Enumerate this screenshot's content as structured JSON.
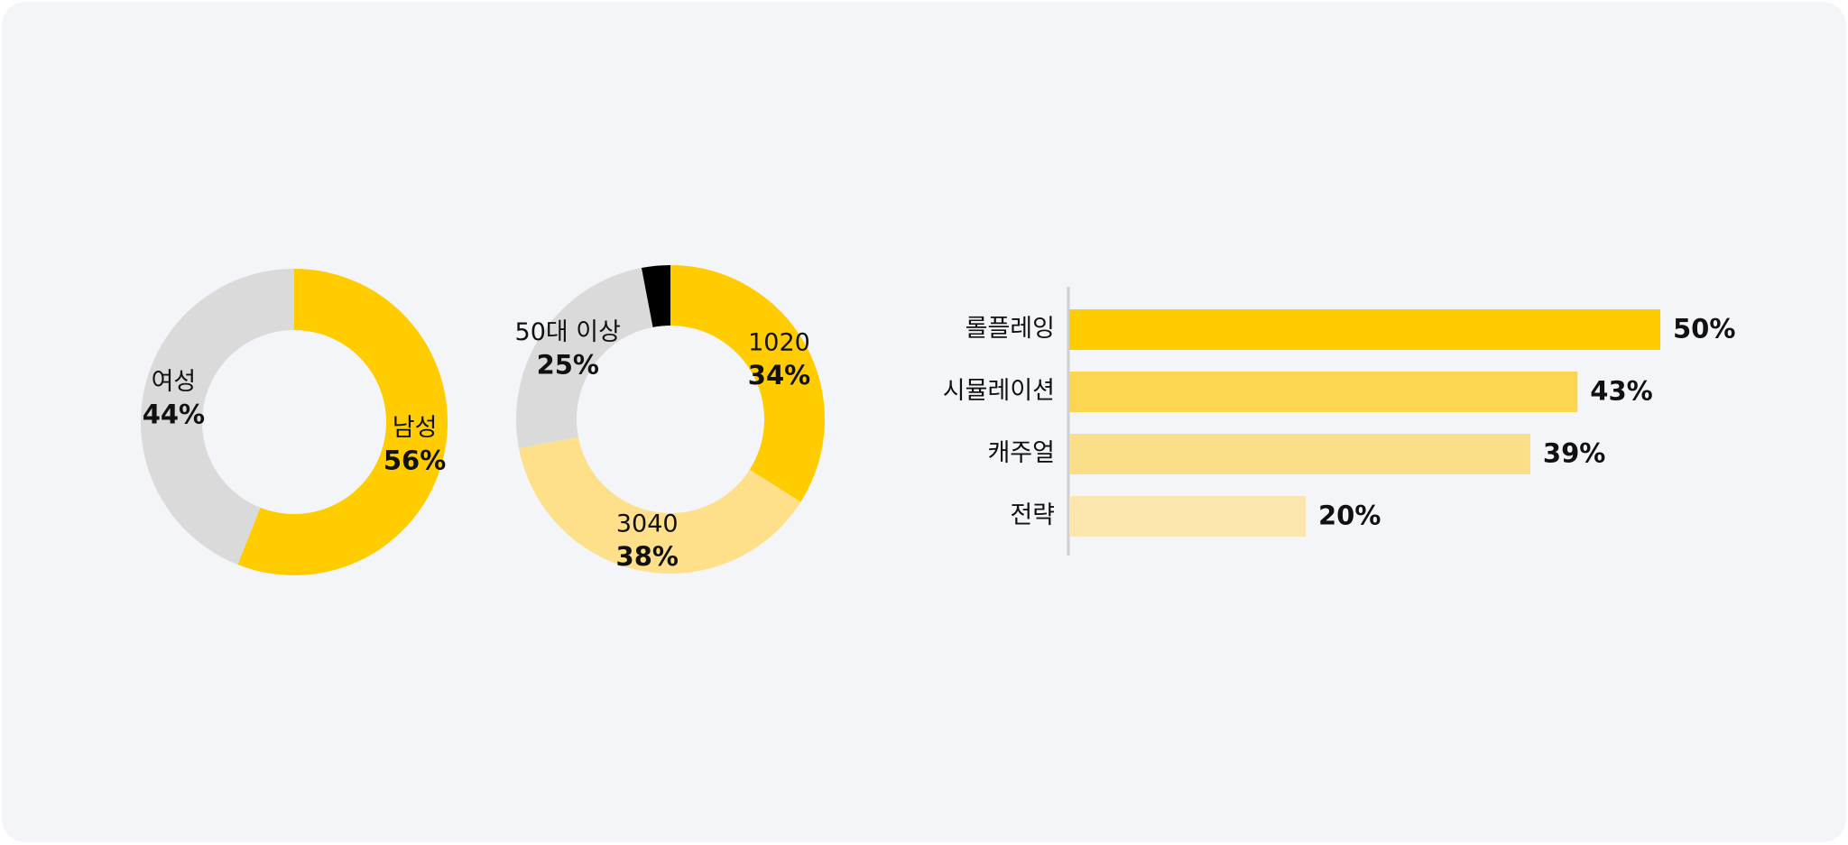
{
  "chart_data": [
    {
      "type": "pie",
      "categories": [
        "남성",
        "여성"
      ],
      "values": [
        56,
        44
      ],
      "value_labels": [
        "56%",
        "44%"
      ],
      "colors": [
        "#FFCC00",
        "#DADADA"
      ]
    },
    {
      "type": "pie",
      "categories": [
        "1020",
        "3040",
        "50대 이상",
        null
      ],
      "values": [
        34,
        38,
        25,
        3
      ],
      "value_labels": [
        "34%",
        "38%",
        "25%",
        null
      ],
      "colors": [
        "#FFCC00",
        "#FEE08A",
        "#DADADA",
        "#000000"
      ]
    },
    {
      "type": "hbar",
      "categories": [
        "롤플레잉",
        "시뮬레이션",
        "캐주얼",
        "전략"
      ],
      "values": [
        50,
        43,
        39,
        20
      ],
      "value_labels": [
        "50%",
        "43%",
        "39%",
        "20%"
      ],
      "colors": [
        "#FFCC00",
        "#FCD650",
        "#FBDE88",
        "#FAE6AE"
      ],
      "xlim": [
        0,
        50
      ]
    }
  ]
}
